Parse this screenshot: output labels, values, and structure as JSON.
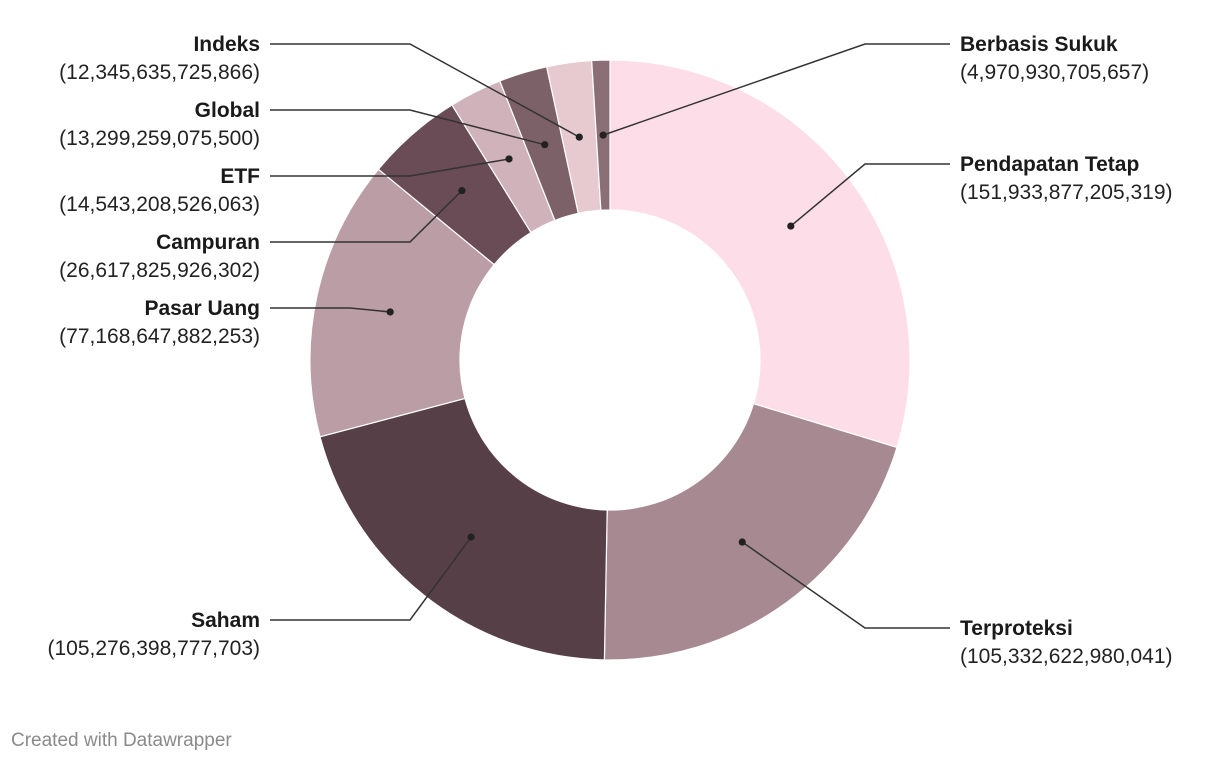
{
  "chart_data": {
    "type": "pie",
    "title": "",
    "series": [
      {
        "categories": [
          "Pendapatan Tetap",
          "Terproteksi",
          "Saham",
          "Pasar Uang",
          "Campuran",
          "ETF",
          "Global",
          "Indeks",
          "Berbasis Sukuk"
        ],
        "values": [
          151933877205319,
          105332622980041,
          105276398777703,
          77168647882253,
          26617825926302,
          14543208526063,
          13299259075500,
          12345635725866,
          4970930705657
        ],
        "value_labels": [
          "(151,933,877,205,319)",
          "(105,332,622,980,041)",
          "(105,276,398,777,703)",
          "(77,168,647,882,253)",
          "(26,617,825,926,302)",
          "(14,543,208,526,063)",
          "(13,299,259,075,500)",
          "(12,345,635,725,866)",
          "(4,970,930,705,657)"
        ],
        "colors": [
          "#fcdde8",
          "#a78a91",
          "#573f48",
          "#ba9da5",
          "#694c55",
          "#d0b2ba",
          "#7d6169",
          "#e7c9d0",
          "#8b6f77"
        ],
        "label_side": [
          "right",
          "right",
          "left",
          "left",
          "left",
          "left",
          "left",
          "left",
          "right"
        ]
      }
    ],
    "donut": true,
    "legend": "none (direct labels)"
  },
  "footer": {
    "credit": "Created with Datawrapper"
  }
}
